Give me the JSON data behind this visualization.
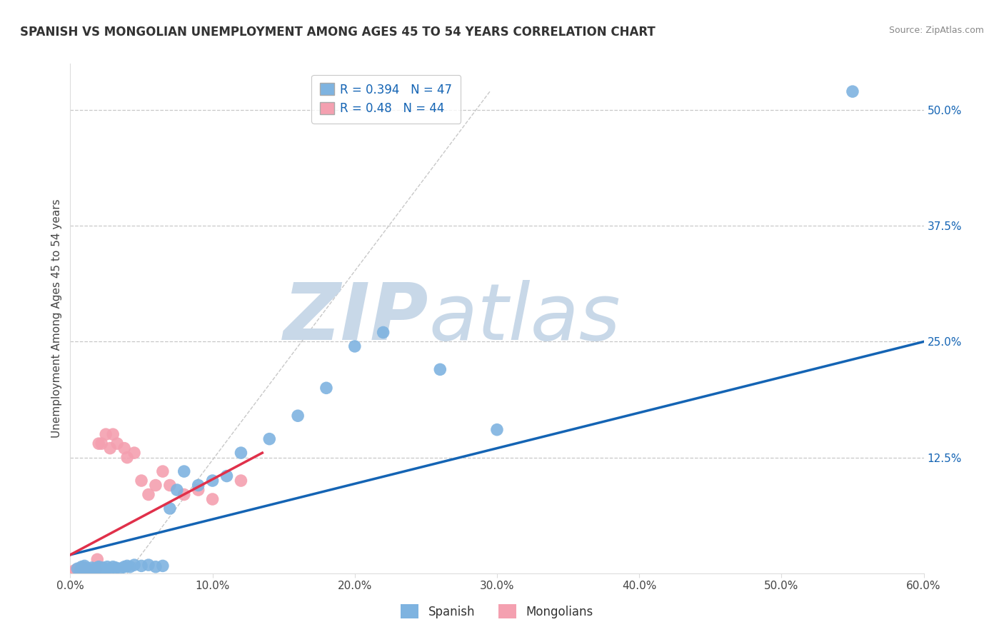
{
  "title": "SPANISH VS MONGOLIAN UNEMPLOYMENT AMONG AGES 45 TO 54 YEARS CORRELATION CHART",
  "source": "Source: ZipAtlas.com",
  "ylabel": "Unemployment Among Ages 45 to 54 years",
  "xlim": [
    0.0,
    0.6
  ],
  "ylim": [
    0.0,
    0.55
  ],
  "xticks": [
    0.0,
    0.1,
    0.2,
    0.3,
    0.4,
    0.5,
    0.6
  ],
  "xticklabels": [
    "0.0%",
    "10.0%",
    "20.0%",
    "30.0%",
    "40.0%",
    "50.0%",
    "60.0%"
  ],
  "ytick_positions": [
    0.0,
    0.125,
    0.25,
    0.375,
    0.5
  ],
  "ytick_labels": [
    "",
    "12.5%",
    "25.0%",
    "37.5%",
    "50.0%"
  ],
  "spanish_R": 0.394,
  "spanish_N": 47,
  "mongolian_R": 0.48,
  "mongolian_N": 44,
  "spanish_color": "#7eb3e0",
  "mongolian_color": "#f4a0b0",
  "spanish_line_color": "#1464b4",
  "mongolian_line_color": "#e0304a",
  "watermark_zip": "ZIP",
  "watermark_atlas": "atlas",
  "watermark_color": "#c8d8e8",
  "dashed_line_color": "#c8c8c8",
  "spanish_x": [
    0.005,
    0.007,
    0.008,
    0.01,
    0.01,
    0.01,
    0.012,
    0.013,
    0.015,
    0.015,
    0.017,
    0.018,
    0.019,
    0.02,
    0.02,
    0.021,
    0.022,
    0.023,
    0.025,
    0.026,
    0.028,
    0.03,
    0.032,
    0.035,
    0.038,
    0.04,
    0.042,
    0.045,
    0.05,
    0.055,
    0.06,
    0.065,
    0.07,
    0.075,
    0.08,
    0.09,
    0.1,
    0.11,
    0.12,
    0.14,
    0.16,
    0.18,
    0.2,
    0.22,
    0.26,
    0.3,
    0.55
  ],
  "spanish_y": [
    0.005,
    0.003,
    0.007,
    0.004,
    0.006,
    0.008,
    0.005,
    0.004,
    0.003,
    0.006,
    0.005,
    0.004,
    0.006,
    0.003,
    0.007,
    0.004,
    0.005,
    0.006,
    0.004,
    0.007,
    0.005,
    0.007,
    0.006,
    0.005,
    0.007,
    0.008,
    0.007,
    0.009,
    0.008,
    0.009,
    0.007,
    0.008,
    0.07,
    0.09,
    0.11,
    0.095,
    0.1,
    0.105,
    0.13,
    0.145,
    0.17,
    0.2,
    0.245,
    0.26,
    0.22,
    0.155,
    0.52
  ],
  "mongolian_x": [
    0.003,
    0.004,
    0.005,
    0.005,
    0.006,
    0.006,
    0.007,
    0.007,
    0.007,
    0.008,
    0.008,
    0.009,
    0.01,
    0.01,
    0.01,
    0.01,
    0.011,
    0.012,
    0.012,
    0.013,
    0.014,
    0.015,
    0.016,
    0.017,
    0.018,
    0.019,
    0.02,
    0.022,
    0.025,
    0.028,
    0.03,
    0.033,
    0.038,
    0.04,
    0.045,
    0.05,
    0.055,
    0.06,
    0.065,
    0.07,
    0.08,
    0.09,
    0.1,
    0.12
  ],
  "mongolian_y": [
    0.003,
    0.003,
    0.003,
    0.004,
    0.003,
    0.004,
    0.003,
    0.004,
    0.005,
    0.003,
    0.004,
    0.003,
    0.003,
    0.004,
    0.005,
    0.006,
    0.004,
    0.003,
    0.005,
    0.004,
    0.003,
    0.004,
    0.003,
    0.003,
    0.004,
    0.015,
    0.14,
    0.14,
    0.15,
    0.135,
    0.15,
    0.14,
    0.135,
    0.125,
    0.13,
    0.1,
    0.085,
    0.095,
    0.11,
    0.095,
    0.085,
    0.09,
    0.08,
    0.1
  ],
  "spanish_line_x": [
    0.0,
    0.6
  ],
  "spanish_line_y": [
    0.02,
    0.25
  ],
  "mongolian_line_x": [
    0.0,
    0.135
  ],
  "mongolian_line_y": [
    0.02,
    0.13
  ]
}
